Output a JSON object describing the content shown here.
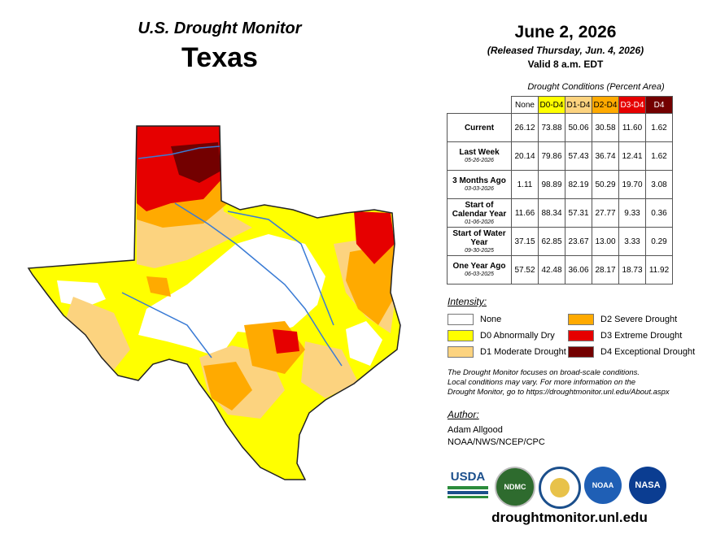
{
  "header": {
    "title": "U.S. Drought Monitor",
    "state": "Texas",
    "date": "June 2, 2026",
    "released": "(Released Thursday, Jun. 4, 2026)",
    "valid": "Valid 8 a.m. EDT"
  },
  "table": {
    "caption": "Drought Conditions (Percent Area)",
    "columns": [
      "None",
      "D0-D4",
      "D1-D4",
      "D2-D4",
      "D3-D4",
      "D4"
    ],
    "rows": [
      {
        "label": "Current",
        "date": "",
        "values": [
          "26.12",
          "73.88",
          "50.06",
          "30.58",
          "11.60",
          "1.62"
        ]
      },
      {
        "label": "Last Week",
        "date": "05-26-2026",
        "values": [
          "20.14",
          "79.86",
          "57.43",
          "36.74",
          "12.41",
          "1.62"
        ]
      },
      {
        "label": "3 Months Ago",
        "date": "03-03-2026",
        "values": [
          "1.11",
          "98.89",
          "82.19",
          "50.29",
          "19.70",
          "3.08"
        ]
      },
      {
        "label": "Start of Calendar Year",
        "date": "01-06-2026",
        "values": [
          "11.66",
          "88.34",
          "57.31",
          "27.77",
          "9.33",
          "0.36"
        ]
      },
      {
        "label": "Start of Water Year",
        "date": "09-30-2025",
        "values": [
          "37.15",
          "62.85",
          "23.67",
          "13.00",
          "3.33",
          "0.29"
        ]
      },
      {
        "label": "One Year Ago",
        "date": "06-03-2025",
        "values": [
          "57.52",
          "42.48",
          "36.06",
          "28.17",
          "18.73",
          "11.92"
        ]
      }
    ]
  },
  "legend": {
    "heading": "Intensity:",
    "items": [
      {
        "label": "None",
        "color": "#ffffff"
      },
      {
        "label": "D0 Abnormally Dry",
        "color": "#ffff00"
      },
      {
        "label": "D1 Moderate Drought",
        "color": "#fcd37f"
      },
      {
        "label": "D2 Severe Drought",
        "color": "#ffaa00"
      },
      {
        "label": "D3 Extreme Drought",
        "color": "#e60000"
      },
      {
        "label": "D4 Exceptional Drought",
        "color": "#730000"
      }
    ]
  },
  "note": {
    "line1": "The Drought Monitor focuses on broad-scale conditions.",
    "line2": "Local conditions may vary. For more information on the",
    "line3": "Drought Monitor, go to https://droughtmonitor.unl.edu/About.aspx"
  },
  "author": {
    "heading": "Author:",
    "name": "Adam Allgood",
    "org": "NOAA/NWS/NCEP/CPC"
  },
  "logos": {
    "usda": "USDA",
    "ndmc": "NDMC",
    "noaa": "NOAA",
    "nasa": "NASA"
  },
  "url": "droughtmonitor.unl.edu"
}
